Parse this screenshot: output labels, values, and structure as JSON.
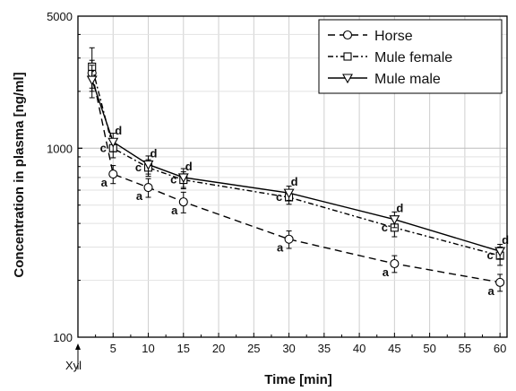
{
  "chart_data": {
    "type": "line",
    "xlabel": "Time [min]",
    "ylabel": "Concentration in plasma [ng/ml]",
    "xlim": [
      0,
      61
    ],
    "ylim": [
      100,
      5000
    ],
    "y_scale": "log",
    "x_ticks": [
      5,
      10,
      15,
      20,
      25,
      30,
      35,
      40,
      45,
      50,
      55,
      60
    ],
    "y_ticks": [
      100,
      1000,
      5000
    ],
    "grid": true,
    "legend_position": "top-right",
    "x_marker": {
      "x": 0,
      "label": "Xyl"
    },
    "series": [
      {
        "name": "Horse",
        "marker": "circle",
        "dash": "dashed",
        "x": [
          2,
          5,
          10,
          15,
          30,
          45,
          60
        ],
        "y": [
          2500,
          730,
          620,
          520,
          330,
          245,
          195
        ],
        "err": [
          420,
          80,
          70,
          65,
          35,
          25,
          20
        ],
        "letters": [
          "",
          "a",
          "a",
          "a",
          "a",
          "a",
          "a"
        ]
      },
      {
        "name": "Mule female",
        "marker": "square",
        "dash": "dashdot",
        "x": [
          2,
          5,
          10,
          15,
          30,
          45,
          60
        ],
        "y": [
          2700,
          1000,
          790,
          680,
          550,
          380,
          270
        ],
        "err": [
          700,
          110,
          80,
          70,
          45,
          40,
          30
        ],
        "letters": [
          "",
          "c",
          "c",
          "c",
          "c",
          "c",
          "c"
        ]
      },
      {
        "name": "Mule male",
        "marker": "triangle-down",
        "dash": "solid",
        "x": [
          2,
          5,
          10,
          15,
          30,
          45,
          60
        ],
        "y": [
          2300,
          1080,
          820,
          700,
          580,
          420,
          285
        ],
        "err": [
          450,
          120,
          90,
          80,
          50,
          40,
          25
        ],
        "letters": [
          "",
          "d",
          "d",
          "d",
          "d",
          "d",
          "d"
        ]
      }
    ]
  }
}
